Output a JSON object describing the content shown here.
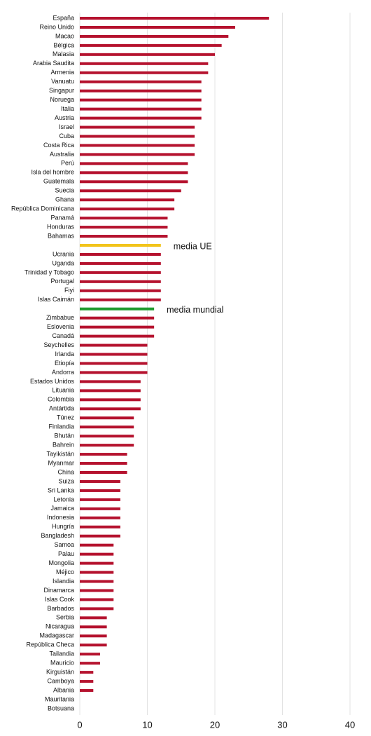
{
  "chart_data": {
    "type": "barh",
    "categories": [
      "España",
      "Reino Unido",
      "Macao",
      "Bélgica",
      "Malasia",
      "Arabia Saudita",
      "Armenia",
      "Vanuatu",
      "Singapur",
      "Noruega",
      "Italia",
      "Austria",
      "Israel",
      "Cuba",
      "Costa Rica",
      "Australia",
      "Perú",
      "Isla del hombre",
      "Guatemala",
      "Suecia",
      "Ghana",
      "República Dominicana",
      "Panamá",
      "Honduras",
      "Bahamas",
      "media UE",
      "Ucrania",
      "Uganda",
      "Trinidad y Tobago",
      "Portugal",
      "Fiyi",
      "Islas Caimán",
      "media mundial",
      "Zimbabue",
      "Eslovenia",
      "Canadá",
      "Seychelles",
      "Irlanda",
      "Etiopía",
      "Andorra",
      "Estados Unidos",
      "Lituania",
      "Colombia",
      "Antártida",
      "Túnez",
      "Finlandia",
      "Bhután",
      "Bahrein",
      "Tayikistán",
      "Myanmar",
      "China",
      "Suiza",
      "Sri Lanka",
      "Letonia",
      "Jamaica",
      "Indonesia",
      "Hungría",
      "Bangladesh",
      "Samoa",
      "Palau",
      "Mongolia",
      "Méjico",
      "Islandia",
      "Dinamarca",
      "Islas Cook",
      "Barbados",
      "Serbia",
      "Nicaragua",
      "Madagascar",
      "República Checa",
      "Tailandia",
      "Mauricio",
      "Kirguistán",
      "Camboya",
      "Albania",
      "Mauritania",
      "Botsuana"
    ],
    "values": [
      28,
      23,
      22,
      21,
      20,
      19,
      19,
      18,
      18,
      18,
      18,
      18,
      17,
      17,
      17,
      17,
      16,
      16,
      16,
      15,
      14,
      14,
      13,
      13,
      13,
      12,
      12,
      12,
      12,
      12,
      12,
      12,
      11,
      11,
      11,
      11,
      10,
      10,
      10,
      10,
      9,
      9,
      9,
      9,
      8,
      8,
      8,
      8,
      7,
      7,
      7,
      6,
      6,
      6,
      6,
      6,
      6,
      6,
      5,
      5,
      5,
      5,
      5,
      5,
      5,
      5,
      4,
      4,
      4,
      4,
      3,
      3,
      2,
      2,
      2,
      0,
      0
    ],
    "color": "#b5122e",
    "highlights": {
      "media UE": "#f2c41b",
      "media mundial": "#1f9a2e"
    },
    "xlim": [
      0,
      40
    ],
    "xticks": [
      0,
      10,
      20,
      30,
      40
    ],
    "grid": true
  }
}
